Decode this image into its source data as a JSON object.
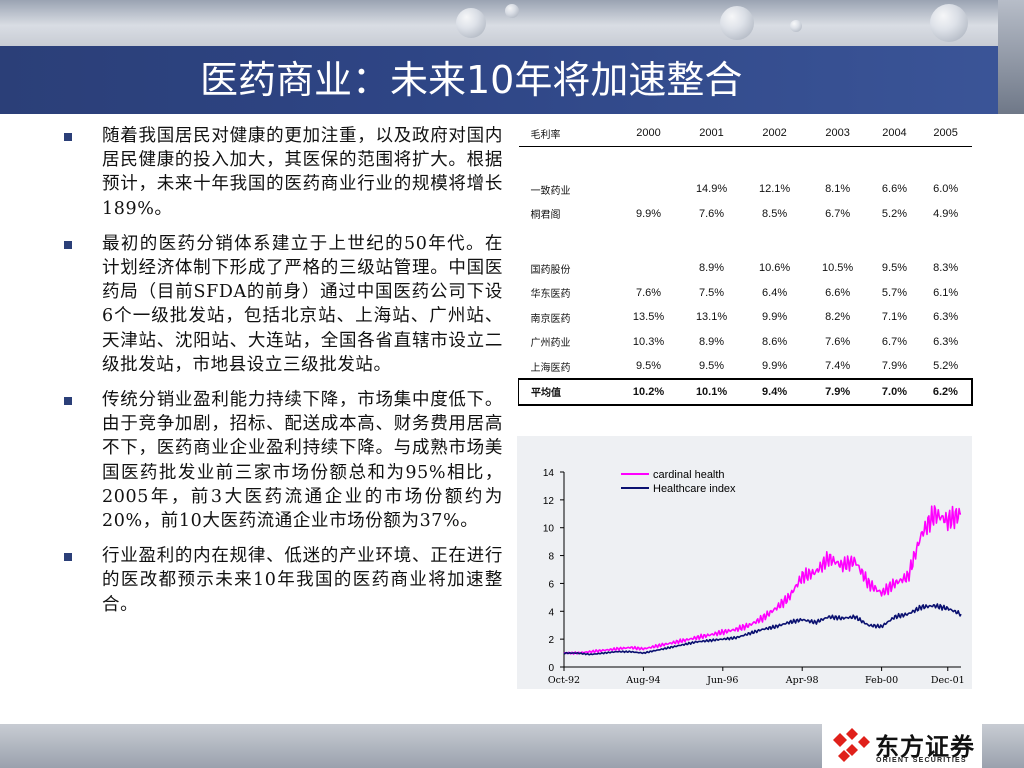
{
  "slide": {
    "title": "医药商业：未来10年将加速整合",
    "bullets": [
      "随着我国居民对健康的更加注重，以及政府对国内居民健康的投入加大，其医保的范围将扩大。根据预计，未来十年我国的医药商业行业的规模将增长189%。",
      "最初的医药分销体系建立于上世纪的50年代。在计划经济体制下形成了严格的三级站管理。中国医药局（目前SFDA的前身）通过中国医药公司下设6个一级批发站，包括北京站、上海站、广州站、天津站、沈阳站、大连站，全国各省直辖市设立二级批发站，市地县设立三级批发站。",
      "传统分销业盈利能力持续下降，市场集中度低下。由于竞争加剧，招标、配送成本高、财务费用居高不下，医药商业企业盈利持续下降。与成熟市场美国医药批发业前三家市场份额总和为95%相比，2005年，前3大医药流通企业的市场份额约为20%，前10大医药流通企业市场份额为37%。",
      "行业盈利的内在规律、低迷的产业环境、正在进行的医改都预示未来10年我国的医药商业将加速整合。"
    ]
  },
  "table": {
    "header": [
      "毛利率",
      "2000",
      "2001",
      "2002",
      "2003",
      "2004",
      "2005"
    ],
    "rows": [
      [
        "一致药业",
        "",
        "14.9%",
        "12.1%",
        "8.1%",
        "6.6%",
        "6.0%"
      ],
      [
        "桐君阁",
        "9.9%",
        "7.6%",
        "8.5%",
        "6.7%",
        "5.2%",
        "4.9%"
      ],
      [
        "国药股份",
        "",
        "8.9%",
        "10.6%",
        "10.5%",
        "9.5%",
        "8.3%"
      ],
      [
        "华东医药",
        "7.6%",
        "7.5%",
        "6.4%",
        "6.6%",
        "5.7%",
        "6.1%"
      ],
      [
        "南京医药",
        "13.5%",
        "13.1%",
        "9.9%",
        "8.2%",
        "7.1%",
        "6.3%"
      ],
      [
        "广州药业",
        "10.3%",
        "8.9%",
        "8.6%",
        "7.6%",
        "6.7%",
        "6.3%"
      ],
      [
        "上海医药",
        "9.5%",
        "9.5%",
        "9.9%",
        "7.4%",
        "7.9%",
        "5.2%"
      ]
    ],
    "average": [
      "平均值",
      "10.2%",
      "10.1%",
      "9.4%",
      "7.9%",
      "7.0%",
      "6.2%"
    ]
  },
  "chart_data": {
    "type": "line",
    "title": "",
    "xlabel": "",
    "ylabel": "",
    "ylim": [
      0,
      14
    ],
    "yticks": [
      0,
      2,
      4,
      6,
      8,
      10,
      12,
      14
    ],
    "x_tick_labels": [
      "Oct-92",
      "Aug-94",
      "Jun-96",
      "Apr-98",
      "Feb-00",
      "Dec-01"
    ],
    "x": [
      "Oct-92",
      "Feb-93",
      "Jun-93",
      "Oct-93",
      "Feb-94",
      "Jun-94",
      "Aug-94",
      "Dec-94",
      "Apr-95",
      "Aug-95",
      "Dec-95",
      "Apr-96",
      "Jun-96",
      "Oct-96",
      "Feb-97",
      "Jun-97",
      "Oct-97",
      "Feb-98",
      "Apr-98",
      "Aug-98",
      "Dec-98",
      "Apr-99",
      "Aug-99",
      "Dec-99",
      "Feb-00",
      "Jun-00",
      "Oct-00",
      "Feb-01",
      "Jun-01",
      "Dec-01",
      "Feb-02"
    ],
    "series": [
      {
        "name": "cardinal health",
        "color": "#ff00ff",
        "values": [
          1.0,
          1.0,
          1.1,
          1.2,
          1.3,
          1.4,
          1.3,
          1.5,
          1.7,
          1.9,
          2.1,
          2.3,
          2.5,
          2.7,
          3.0,
          3.5,
          4.2,
          5.0,
          6.5,
          6.8,
          7.8,
          7.3,
          7.6,
          6.0,
          5.3,
          6.0,
          6.5,
          9.5,
          11.0,
          10.5,
          11.0
        ]
      },
      {
        "name": "Healthcare index",
        "color": "#0a1070",
        "values": [
          1.0,
          1.0,
          0.9,
          1.0,
          1.1,
          1.1,
          1.0,
          1.2,
          1.4,
          1.6,
          1.8,
          1.9,
          2.0,
          2.1,
          2.4,
          2.7,
          2.9,
          3.2,
          3.4,
          3.2,
          3.6,
          3.5,
          3.6,
          3.0,
          2.9,
          3.6,
          3.8,
          4.3,
          4.4,
          4.2,
          3.8
        ]
      }
    ],
    "grid": false,
    "legend": "top"
  },
  "footer": {
    "logo_text": "东方证券",
    "logo_en": "ORIENT SECURITIES",
    "logo_color": "#e0201a"
  }
}
